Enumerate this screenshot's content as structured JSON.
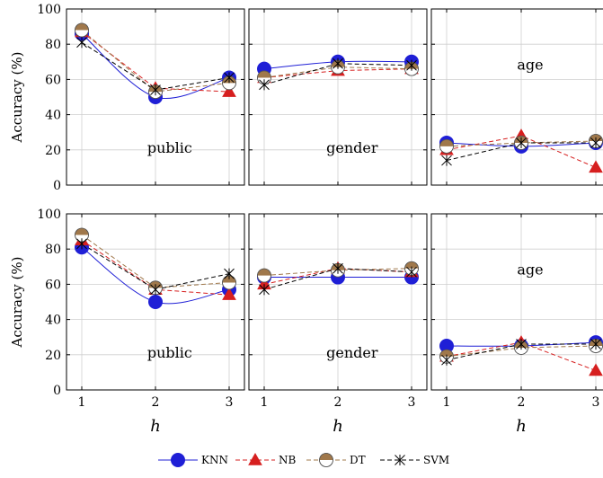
{
  "chart_data": {
    "type": "line",
    "grid": true,
    "x": [
      1,
      2,
      3
    ],
    "xlabel": "h",
    "ylabel": "Accuracy (%)",
    "ylim": [
      0,
      100
    ],
    "yticks": [
      0,
      20,
      40,
      60,
      80,
      100
    ],
    "xticks": [
      1,
      2,
      3
    ],
    "legend": {
      "placement": "bottom",
      "entries": [
        "KNN",
        "NB",
        "DT",
        "SVM"
      ]
    },
    "colors": {
      "KNN": "#1f1fd6",
      "NB": "#d61f1f",
      "DT": "#a0784b",
      "SVM": "#000000"
    },
    "panels": [
      {
        "label": "public",
        "series": [
          {
            "name": "KNN",
            "values": [
              86,
              50,
              61
            ]
          },
          {
            "name": "NB",
            "values": [
              87,
              55,
              53
            ]
          },
          {
            "name": "DT",
            "values": [
              88,
              53,
              58
            ]
          },
          {
            "name": "SVM",
            "values": [
              81,
              54,
              61
            ]
          }
        ]
      },
      {
        "label": "gender",
        "series": [
          {
            "name": "KNN",
            "values": [
              66,
              70,
              70
            ]
          },
          {
            "name": "NB",
            "values": [
              61,
              65,
              66
            ]
          },
          {
            "name": "DT",
            "values": [
              61,
              67,
              66
            ]
          },
          {
            "name": "SVM",
            "values": [
              57,
              69,
              68
            ]
          }
        ]
      },
      {
        "label": "age",
        "series": [
          {
            "name": "KNN",
            "values": [
              24,
              22,
              24
            ]
          },
          {
            "name": "NB",
            "values": [
              20,
              28,
              10
            ]
          },
          {
            "name": "DT",
            "values": [
              22,
              24,
              25
            ]
          },
          {
            "name": "SVM",
            "values": [
              14,
              24,
              24
            ]
          }
        ]
      },
      {
        "label": "public",
        "series": [
          {
            "name": "KNN",
            "values": [
              81,
              50,
              57
            ]
          },
          {
            "name": "NB",
            "values": [
              85,
              57,
              54
            ]
          },
          {
            "name": "DT",
            "values": [
              88,
              58,
              61
            ]
          },
          {
            "name": "SVM",
            "values": [
              83,
              57,
              66
            ]
          }
        ]
      },
      {
        "label": "gender",
        "series": [
          {
            "name": "KNN",
            "values": [
              64,
              64,
              64
            ]
          },
          {
            "name": "NB",
            "values": [
              60,
              69,
              67
            ]
          },
          {
            "name": "DT",
            "values": [
              65,
              68,
              69
            ]
          },
          {
            "name": "SVM",
            "values": [
              57,
              69,
              67
            ]
          }
        ]
      },
      {
        "label": "age",
        "series": [
          {
            "name": "KNN",
            "values": [
              25,
              25,
              27
            ]
          },
          {
            "name": "NB",
            "values": [
              19,
              27,
              11
            ]
          },
          {
            "name": "DT",
            "values": [
              19,
              24,
              25
            ]
          },
          {
            "name": "SVM",
            "values": [
              17,
              26,
              26
            ]
          }
        ]
      }
    ]
  }
}
